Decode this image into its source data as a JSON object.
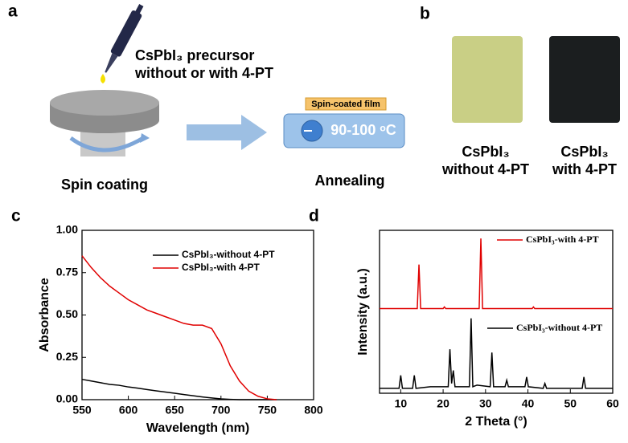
{
  "panels": {
    "a": {
      "label": "a",
      "precursor": "CsPbI₃  precursor",
      "condition": "without or with 4-PT",
      "step1": "Spin coating",
      "film": "Spin-coated film",
      "temperature": "90-100 ᵒC",
      "step2": "Annealing"
    },
    "b": {
      "label": "b",
      "left_title": "CsPbI₃",
      "left_sub": "without 4-PT",
      "right_title": "CsPbI₃",
      "right_sub": "with 4-PT"
    }
  },
  "chart_data": [
    {
      "type": "line",
      "panel": "c",
      "xlabel": "Wavelength (nm)",
      "ylabel": "Absorbance",
      "x": [
        550,
        560,
        570,
        580,
        590,
        600,
        610,
        620,
        630,
        640,
        650,
        660,
        670,
        680,
        690,
        700,
        710,
        720,
        730,
        740,
        750,
        760
      ],
      "xlim": [
        550,
        800
      ],
      "xticks": [
        550,
        600,
        650,
        700,
        750,
        800
      ],
      "ylim": [
        0,
        1
      ],
      "yticks": [
        {
          "value": 0,
          "label": "0.00"
        },
        {
          "value": 0.25,
          "label": "0.25"
        },
        {
          "value": 0.5,
          "label": "0.50"
        },
        {
          "value": 0.75,
          "label": "0.75"
        },
        {
          "value": 1,
          "label": "1.00"
        }
      ],
      "legend": "upper right",
      "series": [
        {
          "name": "CsPbI₃-without 4-PT",
          "color": "#000000",
          "values": [
            0.12,
            0.11,
            0.1,
            0.09,
            0.085,
            0.075,
            0.068,
            0.06,
            0.052,
            0.045,
            0.038,
            0.03,
            0.023,
            0.016,
            0.01,
            0.005,
            0.002,
            0,
            0,
            0,
            0,
            0
          ]
        },
        {
          "name": "CsPbI₃-with 4-PT",
          "color": "#e00000",
          "values": [
            0.85,
            0.78,
            0.72,
            0.67,
            0.63,
            0.59,
            0.56,
            0.53,
            0.51,
            0.49,
            0.47,
            0.45,
            0.44,
            0.44,
            0.42,
            0.33,
            0.2,
            0.11,
            0.05,
            0.02,
            0.005,
            0
          ]
        }
      ]
    },
    {
      "type": "line",
      "panel": "d",
      "xlabel": "2 Theta (°)",
      "ylabel": "Intensity (a.u.)",
      "xlim": [
        5,
        60
      ],
      "xticks": [
        10,
        20,
        30,
        40,
        50,
        60
      ],
      "ylim": [
        0,
        100
      ],
      "series": [
        {
          "name": "CsPbI₃-with 4-PT",
          "color": "#e00000",
          "x": [
            5,
            13.9,
            14.3,
            14.7,
            20,
            20.3,
            20.6,
            28.5,
            28.9,
            29.3,
            41,
            41.3,
            41.6,
            60
          ],
          "values": [
            52,
            52,
            79,
            52,
            52,
            53,
            52,
            52,
            95,
            52,
            52,
            53,
            52,
            52
          ]
        },
        {
          "name": "CsPbI₃-without 4-PT",
          "color": "#000000",
          "x": [
            5,
            9.6,
            10,
            10.4,
            12.8,
            13.2,
            13.6,
            17,
            21.2,
            21.6,
            22,
            22.4,
            22.8,
            23.2,
            26.2,
            26.6,
            27,
            28,
            31.1,
            31.5,
            31.9,
            34.6,
            35,
            35.4,
            39.3,
            39.7,
            40.1,
            43.6,
            44,
            44.4,
            52.8,
            53.2,
            53.6,
            60
          ],
          "values": [
            3,
            3,
            11,
            3,
            3,
            11,
            3,
            4,
            4,
            27,
            6,
            14,
            4,
            4,
            4,
            46,
            4,
            5,
            4,
            25,
            4,
            4,
            8,
            4,
            4,
            10,
            4,
            3,
            6,
            3,
            3,
            10,
            3,
            3
          ]
        }
      ]
    }
  ]
}
